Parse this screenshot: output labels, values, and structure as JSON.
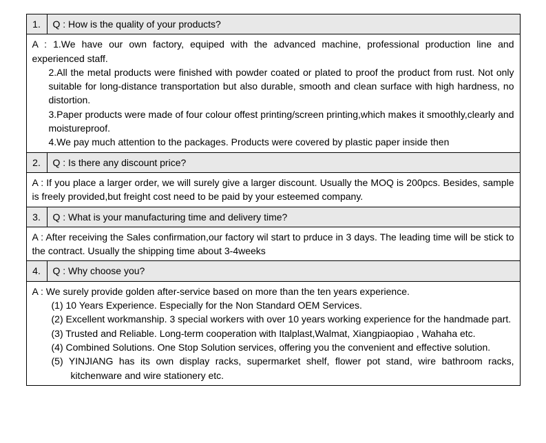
{
  "colors": {
    "question_bg": "#e8e8e8",
    "answer_bg": "#ffffff",
    "border": "#000000",
    "text": "#000000"
  },
  "font": {
    "family": "Comic Sans MS",
    "size_pt": 11
  },
  "faq": [
    {
      "num": "1.",
      "q": "Q : How is the quality of your products?",
      "a_lead": "A : 1.We have our own factory, equiped with the advanced machine, professional production line and experienced staff.",
      "a_lines": [
        "2.All the metal products were finished with powder coated or plated to proof the product from rust. Not only suitable for long-distance transportation but also durable, smooth and clean surface with high hardness, no distortion.",
        "3.Paper products were made of four colour offest printing/screen printing,which makes it smoothly,clearly and moistureproof.",
        "4.We pay much attention to the packages. Products were covered by plastic paper inside then"
      ]
    },
    {
      "num": "2.",
      "q": "Q : Is there any discount price?",
      "a_lead": "A : If you place a larger order, we will surely give a larger discount. Usually the MOQ is 200pcs. Besides, sample is freely provided,but freight cost need to be paid by your esteemed company.",
      "a_lines": []
    },
    {
      "num": "3.",
      "q": "Q : What is your manufacturing time and delivery time?",
      "a_lead": "A : After receiving the Sales confirmation,our factory wil start to prduce in 3 days. The leading time will be stick to the contract. Usually the shipping time about 3-4weeks",
      "a_lines": []
    },
    {
      "num": "4.",
      "q": "Q : Why choose you?",
      "a_lead": "A : We surely provide golden after-service based on more than the ten years experience.",
      "a_sublist": [
        "(1) 10 Years Experience. Especially for the Non Standard OEM Services.",
        "(2) Excellent workmanship. 3 special workers with over 10 years working experience for the handmade part.",
        "(3) Trusted and Reliable. Long-term cooperation with Italplast,Walmat, Xiangpiaopiao , Wahaha etc.",
        "(4) Combined Solutions. One Stop Solution services, offering you the convenient and effective solution.",
        "(5) YINJIANG has its own display racks, supermarket shelf, flower pot stand, wire bathroom racks, kitchenware and wire stationery etc."
      ]
    }
  ]
}
